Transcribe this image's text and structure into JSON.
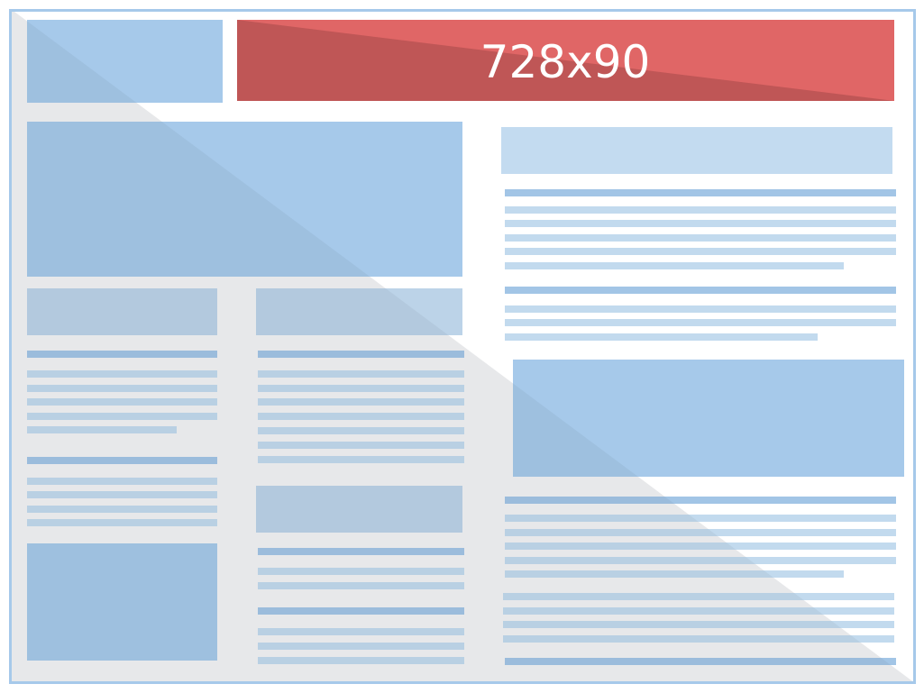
{
  "ad": {
    "label": "728x90"
  },
  "colors": {
    "frame": "#a6c9ea",
    "block": "#a6c9ea",
    "block_light": "#bcd3e8",
    "header_light": "#c3dbf0",
    "heading_line": "#a2c5e6",
    "text_line": "#c2daee",
    "ad": "#e06666",
    "ad_shade": "#bf5656",
    "background_shade": "#f2f3f5"
  }
}
